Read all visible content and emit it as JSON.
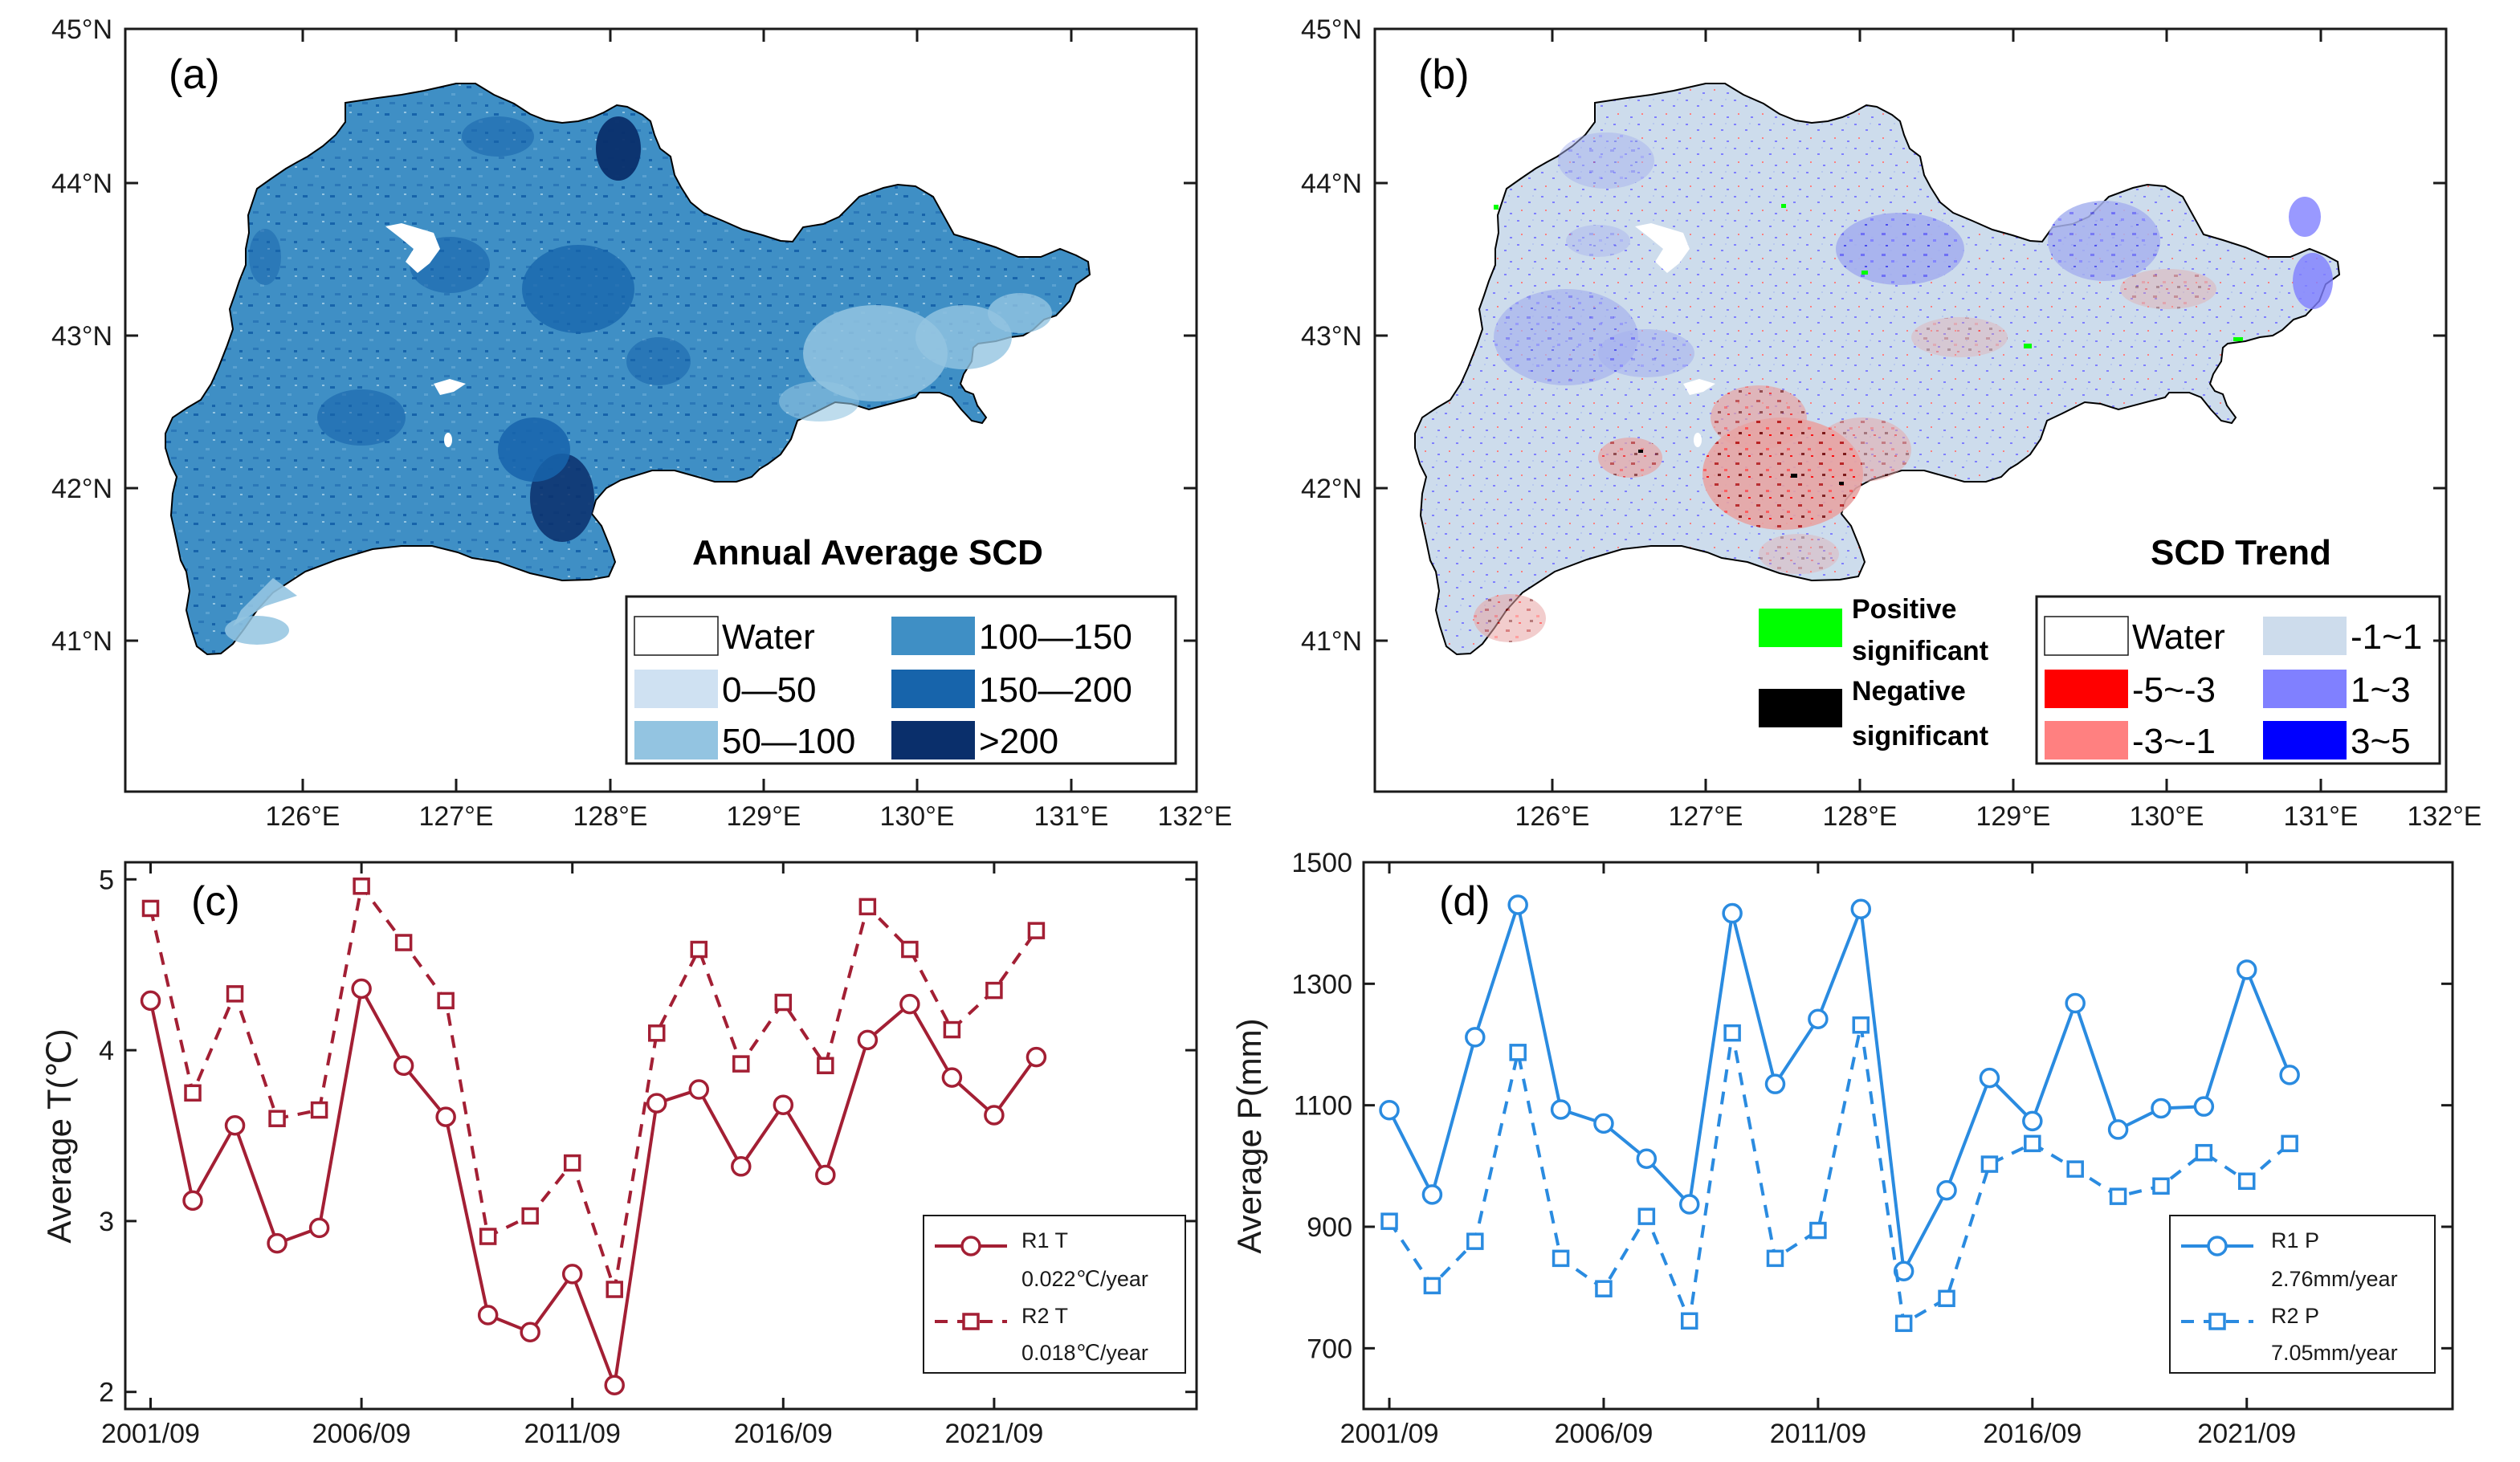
{
  "colors": {
    "water": "#ffffff",
    "scd_0_50": "#cfe1f2",
    "scd_50_100": "#93c4e1",
    "scd_100_150": "#3f8fc5",
    "scd_150_200": "#1764ab",
    "scd_gt200": "#0a2f6b",
    "trend_-1_1": "#cddcec",
    "trend_-5_-3": "#ff0000",
    "trend_-3_-1": "#ff8080",
    "trend_1_3": "#8080ff",
    "trend_3_5": "#0000ff",
    "positive_significant": "#00ff00",
    "negative_significant": "#000000",
    "r1_temp": "#a31f34",
    "r1_prec": "#2a8be0"
  },
  "maps": {
    "lat_ticks": [
      "45°N",
      "44°N",
      "43°N",
      "42°N",
      "41°N"
    ],
    "lon_ticks": [
      "126°E",
      "127°E",
      "128°E",
      "129°E",
      "130°E",
      "131°E",
      "132°E"
    ],
    "a": {
      "label": "(a)",
      "title": "Annual Average SCD",
      "legend": [
        {
          "text": "Water",
          "color_key": "water"
        },
        {
          "text": "0—50",
          "color_key": "scd_0_50"
        },
        {
          "text": "50—100",
          "color_key": "scd_50_100"
        },
        {
          "text": "100—150",
          "color_key": "scd_100_150"
        },
        {
          "text": "150—200",
          "color_key": "scd_150_200"
        },
        {
          "text": ">200",
          "color_key": "scd_gt200"
        }
      ]
    },
    "b": {
      "label": "(b)",
      "title": "SCD Trend",
      "legend": [
        {
          "text": "Water",
          "color_key": "water"
        },
        {
          "text": "-5~-3",
          "color_key": "trend_-5_-3"
        },
        {
          "text": "-3~-1",
          "color_key": "trend_-3_-1"
        },
        {
          "text": "-1~1",
          "color_key": "trend_-1_1"
        },
        {
          "text": "1~3",
          "color_key": "trend_1_3"
        },
        {
          "text": "3~5",
          "color_key": "trend_3_5"
        }
      ],
      "sig_legend": [
        {
          "line1": "Positive",
          "line2": "significant",
          "color_key": "positive_significant"
        },
        {
          "line1": "Negative",
          "line2": "significant",
          "color_key": "negative_significant"
        }
      ]
    }
  },
  "chart_data": [
    {
      "panel": "(c)",
      "type": "line",
      "ylabel": "Average T(℃)",
      "ylim": [
        1.9,
        5.1
      ],
      "yticks": [
        2,
        3,
        4,
        5
      ],
      "xlim": [
        2000.4,
        2025.8
      ],
      "xticks": [
        2001,
        2006,
        2011,
        2016,
        2021
      ],
      "xticklabels": [
        "2001/09",
        "2006/09",
        "2011/09",
        "2016/09",
        "2021/09"
      ],
      "x": [
        2001,
        2002,
        2003,
        2004,
        2005,
        2006,
        2007,
        2008,
        2009,
        2010,
        2011,
        2012,
        2013,
        2014,
        2015,
        2016,
        2017,
        2018,
        2019,
        2020,
        2021,
        2022
      ],
      "legend_position": "bottom-right",
      "series": [
        {
          "name": "R1 T",
          "trend": "0.022℃/year",
          "line": "solid",
          "marker": "circle",
          "color_key": "r1_temp",
          "values": [
            4.29,
            3.12,
            3.56,
            2.87,
            2.96,
            4.36,
            3.91,
            3.61,
            2.45,
            2.35,
            2.69,
            2.04,
            3.69,
            3.77,
            3.32,
            3.68,
            3.27,
            4.06,
            4.27,
            3.84,
            3.62,
            3.96
          ]
        },
        {
          "name": "R2 T",
          "trend": "0.018℃/year",
          "line": "dashed",
          "marker": "square",
          "color_key": "r1_temp",
          "values": [
            4.83,
            3.75,
            4.33,
            3.6,
            3.65,
            4.96,
            4.63,
            4.29,
            2.91,
            3.03,
            3.34,
            2.6,
            4.1,
            4.59,
            3.92,
            4.28,
            3.91,
            4.84,
            4.59,
            4.12,
            4.35,
            4.7
          ]
        }
      ]
    },
    {
      "panel": "(d)",
      "type": "line",
      "ylabel": "Average P(mm)",
      "ylim": [
        600,
        1500
      ],
      "yticks": [
        700,
        900,
        1100,
        1300,
        1500
      ],
      "xlim": [
        2000.4,
        2025.8
      ],
      "xticks": [
        2001,
        2006,
        2011,
        2016,
        2021
      ],
      "xticklabels": [
        "2001/09",
        "2006/09",
        "2011/09",
        "2016/09",
        "2021/09"
      ],
      "x": [
        2001,
        2002,
        2003,
        2004,
        2005,
        2006,
        2007,
        2008,
        2009,
        2010,
        2011,
        2012,
        2013,
        2014,
        2015,
        2016,
        2017,
        2018,
        2019,
        2020,
        2021,
        2022
      ],
      "legend_position": "bottom-right",
      "series": [
        {
          "name": "R1 P",
          "trend": "2.76mm/year",
          "line": "solid",
          "marker": "circle",
          "color_key": "r1_prec",
          "values": [
            1092,
            953,
            1212,
            1430,
            1093,
            1070,
            1012,
            937,
            1416,
            1135,
            1242,
            1423,
            827,
            960,
            1145,
            1074,
            1268,
            1060,
            1095,
            1098,
            1323,
            1150
          ]
        },
        {
          "name": "R2 P",
          "trend": "7.05mm/year",
          "line": "dashed",
          "marker": "square",
          "color_key": "r1_prec",
          "values": [
            909,
            803,
            876,
            1187,
            848,
            798,
            917,
            745,
            1219,
            848,
            894,
            1232,
            741,
            782,
            1003,
            1037,
            995,
            950,
            967,
            1022,
            975,
            1037
          ]
        }
      ]
    }
  ]
}
